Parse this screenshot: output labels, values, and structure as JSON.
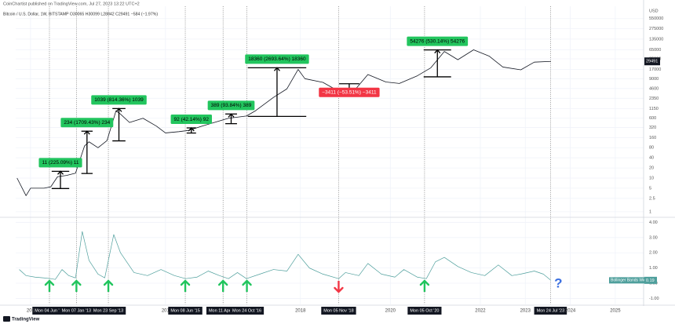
{
  "header": {
    "publisher": "CoinChartist published on TradingView.com, Jul 27, 2023 13:22 UTC+2",
    "symbol": "Bitcoin / U.S. Dollar, 1W, BITSTAMP  O30065  H30099  L28842  C29491  −584 (−1.97%)"
  },
  "brand": "TradingView",
  "chart_data": [
    {
      "type": "line",
      "log_scale": true,
      "grid": true,
      "y_label": "USD",
      "xlim": [
        2011.67,
        2025.63
      ],
      "ylim": [
        0.72,
        1280000
      ],
      "yticks": [
        550000,
        275000,
        135000,
        65000,
        35000,
        17000,
        9000,
        4600,
        2350,
        1150,
        600,
        320,
        160,
        80,
        40,
        20,
        10,
        5,
        2.5,
        1
      ],
      "series": [
        {
          "color": "#131722",
          "x": [
            2011.7,
            2011.9,
            2012.0,
            2012.3,
            2012.45,
            2012.6,
            2012.8,
            2013.0,
            2013.2,
            2013.3,
            2013.5,
            2013.7,
            2013.9,
            2014.0,
            2014.2,
            2014.5,
            2014.8,
            2015.0,
            2015.3,
            2015.5,
            2015.9,
            2016.4,
            2016.8,
            2017.0,
            2017.4,
            2017.7,
            2017.95,
            2018.1,
            2018.5,
            2018.9,
            2019.2,
            2019.5,
            2019.9,
            2020.2,
            2020.6,
            2020.9,
            2021.2,
            2021.5,
            2021.85,
            2022.2,
            2022.5,
            2022.9,
            2023.2,
            2023.57
          ],
          "values": [
            10,
            3,
            5,
            5,
            5.5,
            11,
            12,
            14,
            90,
            120,
            80,
            130,
            1000,
            800,
            450,
            600,
            350,
            220,
            240,
            260,
            380,
            600,
            700,
            1000,
            2500,
            4500,
            17000,
            9000,
            7000,
            3500,
            4000,
            12000,
            7200,
            6500,
            11000,
            19000,
            58000,
            33000,
            65000,
            42000,
            20000,
            16500,
            28000,
            29491
          ]
        }
      ],
      "measures": [
        {
          "label": "11 (225.09%) 11",
          "x": [
            2012.47,
            2012.86
          ],
          "from": 4.89,
          "to": 15.9,
          "color": "#22c55e",
          "text_color": "#000000"
        },
        {
          "label": "234 (1709.43%) 234",
          "x": [
            2013.13,
            2013.38
          ],
          "from": 13.7,
          "to": 247.7,
          "color": "#22c55e",
          "text_color": "#000000"
        },
        {
          "label": "1039 (814.36%) 1039",
          "x": [
            2013.82,
            2014.11
          ],
          "from": 127.6,
          "to": 1166.6,
          "color": "#22c55e",
          "text_color": "#000000"
        },
        {
          "label": "92 (42.14%) 92",
          "x": [
            2015.47,
            2015.68
          ],
          "from": 218.3,
          "to": 310.3,
          "color": "#22c55e",
          "text_color": "#000000"
        },
        {
          "label": "389 (93.84%) 389",
          "x": [
            2016.33,
            2016.59
          ],
          "from": 414.5,
          "to": 803.5,
          "color": "#22c55e",
          "text_color": "#000000"
        },
        {
          "label": "18360 (2693.64%) 18360",
          "x": [
            2016.83,
            2018.13
          ],
          "from": 681.6,
          "to": 19041.6,
          "color": "#22c55e",
          "text_color": "#000000"
        },
        {
          "label": "−3411 (−53.51%) −3411",
          "x": [
            2018.86,
            2019.31
          ],
          "from": 6374.5,
          "to": 2963.5,
          "color": "#f23645",
          "text_color": "#ffffff"
        },
        {
          "label": "54276 (530.14%) 54276",
          "x": [
            2020.74,
            2021.35
          ],
          "from": 10238,
          "to": 64514,
          "color": "#22c55e",
          "text_color": "#000000"
        }
      ],
      "events": [
        {
          "label": "Mon 04 Jun '12",
          "x": 2012.42,
          "marker": "up"
        },
        {
          "label": "Mon 07 Jan '13",
          "x": 2013.02,
          "marker": "up"
        },
        {
          "label": "Mon 23 Sep '13",
          "x": 2013.73,
          "marker": "up"
        },
        {
          "label": "Mon 08 Jun '15",
          "x": 2015.44,
          "marker": "up"
        },
        {
          "label": "Mon 11 Apr '16",
          "x": 2016.28,
          "marker": "up"
        },
        {
          "label": "Mon 24 Oct '16",
          "x": 2016.81,
          "marker": "up"
        },
        {
          "label": "Mon 05 Nov '18",
          "x": 2018.85,
          "marker": "down"
        },
        {
          "label": "Mon 05 Oct '20",
          "x": 2020.76,
          "marker": "up"
        },
        {
          "label": "Mon 24 Jul '23",
          "x": 2023.56,
          "marker_text": "?"
        }
      ]
    },
    {
      "type": "line",
      "grid": true,
      "xlim": [
        2011.67,
        2025.63
      ],
      "ylim": [
        -1.39,
        4.28
      ],
      "xticks": [
        {
          "value": 2012,
          "label": "201"
        },
        {
          "value": 2015,
          "label": "201"
        },
        2018,
        2020,
        2022,
        2023,
        2024,
        2025
      ],
      "yticks": [
        {
          "value": 4,
          "label": "4.00"
        },
        {
          "value": 3,
          "label": "3.00"
        },
        {
          "value": 2,
          "label": "2.00"
        },
        {
          "value": 1,
          "label": "1.00"
        },
        {
          "value": 0,
          "label": "0.00"
        },
        {
          "value": -1,
          "label": "-1.00"
        }
      ],
      "series": [
        {
          "name": "Bollinger Bands Width",
          "color": "#4e9f9c",
          "x": [
            2011.75,
            2011.9,
            2012.1,
            2012.3,
            2012.45,
            2012.55,
            2012.7,
            2012.85,
            2013.0,
            2013.15,
            2013.3,
            2013.5,
            2013.65,
            2013.85,
            2014.0,
            2014.3,
            2014.6,
            2014.9,
            2015.2,
            2015.45,
            2015.7,
            2015.95,
            2016.2,
            2016.4,
            2016.6,
            2016.8,
            2017.1,
            2017.4,
            2017.7,
            2017.95,
            2018.2,
            2018.5,
            2018.85,
            2019.0,
            2019.3,
            2019.5,
            2019.8,
            2020.1,
            2020.3,
            2020.6,
            2020.8,
            2021.0,
            2021.2,
            2021.5,
            2021.8,
            2022.1,
            2022.4,
            2022.7,
            2022.9,
            2023.2,
            2023.4,
            2023.57
          ],
          "values": [
            0.9,
            0.5,
            0.4,
            0.35,
            0.3,
            0.25,
            0.9,
            0.5,
            0.35,
            3.4,
            1.5,
            0.6,
            0.35,
            3.2,
            2.0,
            0.7,
            0.5,
            0.9,
            0.5,
            0.3,
            0.4,
            0.8,
            0.5,
            0.3,
            0.7,
            0.3,
            0.6,
            0.9,
            0.8,
            1.9,
            1.0,
            0.6,
            0.3,
            0.7,
            0.5,
            1.3,
            0.6,
            0.4,
            0.9,
            0.4,
            0.3,
            1.4,
            1.7,
            1.1,
            0.7,
            0.5,
            1.2,
            0.5,
            0.6,
            0.8,
            0.6,
            0.19
          ]
        }
      ]
    }
  ]
}
